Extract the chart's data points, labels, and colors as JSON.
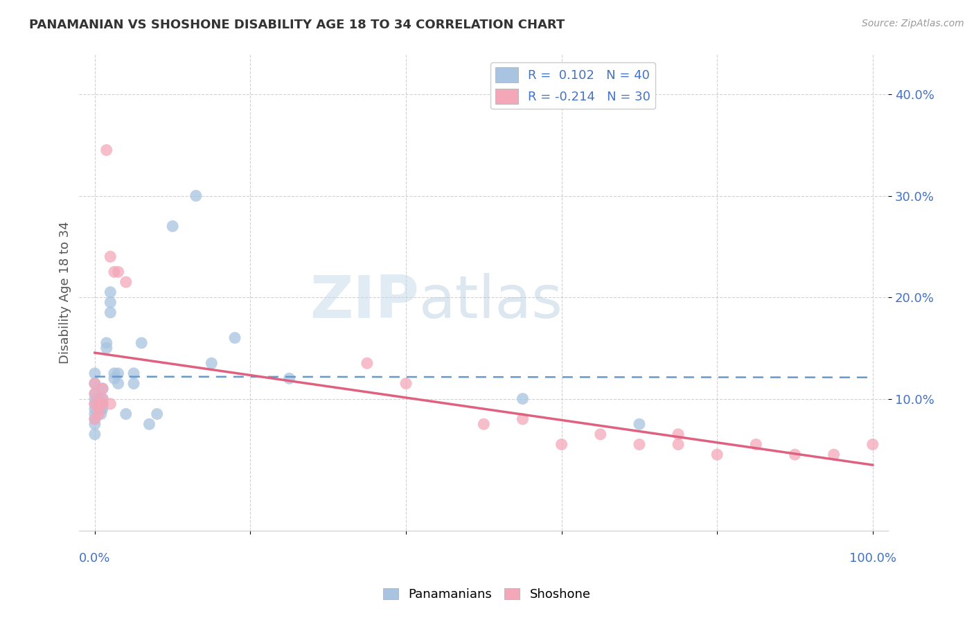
{
  "title": "PANAMANIAN VS SHOSHONE DISABILITY AGE 18 TO 34 CORRELATION CHART",
  "source_text": "Source: ZipAtlas.com",
  "ylabel": "Disability Age 18 to 34",
  "background_color": "#ffffff",
  "watermark_zip": "ZIP",
  "watermark_atlas": "atlas",
  "panamanian_color": "#a8c4e0",
  "shoshone_color": "#f4a7b9",
  "panamanian_line_color": "#6699cc",
  "shoshone_line_color": "#e06080",
  "grid_color": "#cccccc",
  "xlim": [
    -0.02,
    1.02
  ],
  "ylim": [
    -0.03,
    0.44
  ],
  "ytick_labels": [
    "10.0%",
    "20.0%",
    "30.0%",
    "40.0%"
  ],
  "ytick_vals": [
    0.1,
    0.2,
    0.3,
    0.4
  ],
  "xtick_bottom_labels": [
    "0.0%",
    "100.0%"
  ],
  "xtick_bottom_vals": [
    0.0,
    1.0
  ],
  "pan_R": 0.102,
  "pan_N": 40,
  "sho_R": -0.214,
  "sho_N": 30,
  "panamanian_x": [
    0.0,
    0.0,
    0.0,
    0.0,
    0.0,
    0.0,
    0.0,
    0.0,
    0.0,
    0.0,
    0.005,
    0.005,
    0.008,
    0.008,
    0.01,
    0.01,
    0.01,
    0.01,
    0.015,
    0.015,
    0.02,
    0.02,
    0.02,
    0.025,
    0.025,
    0.03,
    0.03,
    0.04,
    0.05,
    0.05,
    0.06,
    0.07,
    0.08,
    0.1,
    0.13,
    0.18,
    0.25,
    0.55,
    0.7,
    0.15
  ],
  "panamanian_y": [
    0.065,
    0.075,
    0.08,
    0.085,
    0.09,
    0.095,
    0.1,
    0.105,
    0.115,
    0.125,
    0.09,
    0.1,
    0.085,
    0.09,
    0.09,
    0.095,
    0.1,
    0.11,
    0.15,
    0.155,
    0.185,
    0.195,
    0.205,
    0.12,
    0.125,
    0.115,
    0.125,
    0.085,
    0.115,
    0.125,
    0.155,
    0.075,
    0.085,
    0.27,
    0.3,
    0.16,
    0.12,
    0.1,
    0.075,
    0.135
  ],
  "shoshone_x": [
    0.0,
    0.0,
    0.0,
    0.005,
    0.005,
    0.01,
    0.01,
    0.015,
    0.02,
    0.025,
    0.03,
    0.04,
    0.35,
    0.4,
    0.5,
    0.55,
    0.6,
    0.65,
    0.7,
    0.75,
    0.8,
    0.85,
    0.9,
    0.95,
    1.0,
    0.0,
    0.005,
    0.01,
    0.02,
    0.75
  ],
  "shoshone_y": [
    0.095,
    0.105,
    0.115,
    0.085,
    0.095,
    0.1,
    0.11,
    0.345,
    0.24,
    0.225,
    0.225,
    0.215,
    0.135,
    0.115,
    0.075,
    0.08,
    0.055,
    0.065,
    0.055,
    0.055,
    0.045,
    0.055,
    0.045,
    0.045,
    0.055,
    0.08,
    0.09,
    0.095,
    0.095,
    0.065
  ]
}
